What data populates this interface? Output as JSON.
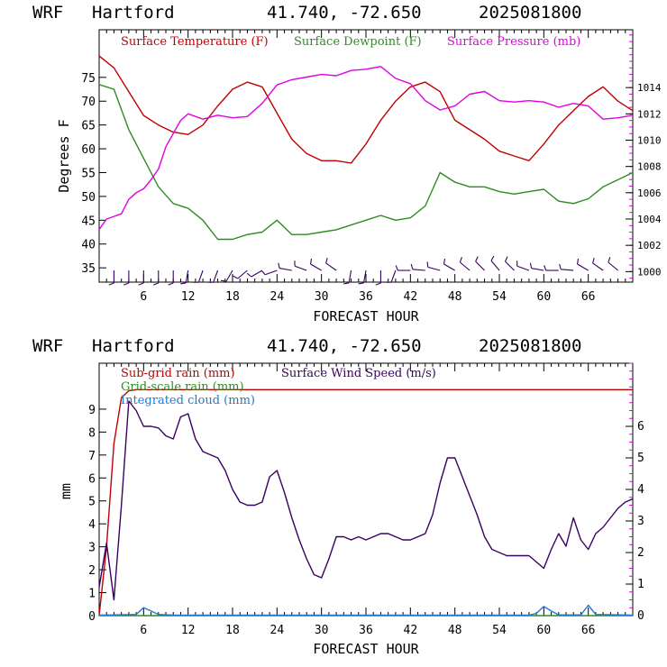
{
  "panels": [
    {
      "header": {
        "model": "WRF",
        "location": "Hartford",
        "coords": "41.740, -72.650",
        "run": "2025081800"
      },
      "xlabel": "FORECAST HOUR",
      "ylabel": "Degrees F",
      "legend": [
        {
          "label": "Surface Temperature (F)",
          "color": "#c00000"
        },
        {
          "label": "Surface Dewpoint (F)",
          "color": "#2e8b22"
        },
        {
          "label": "Surface Pressure (mb)",
          "color": "#e000e0"
        }
      ]
    },
    {
      "header": {
        "model": "WRF",
        "location": "Hartford",
        "coords": "41.740, -72.650",
        "run": "2025081800"
      },
      "xlabel": "FORECAST HOUR",
      "ylabel": "mm",
      "legend": [
        {
          "label": "Sub-grid rain (mm)",
          "color": "#c00000"
        },
        {
          "label": "Surface Wind Speed (m/s)",
          "color": "#3a0060"
        },
        {
          "label": "Grid-scale rain (mm)",
          "color": "#2e8b22"
        },
        {
          "label": "Integrated cloud (mm)",
          "color": "#1e7ad0"
        }
      ]
    }
  ],
  "chart_data": [
    {
      "type": "line",
      "xlim": [
        0,
        72
      ],
      "x_ticks": [
        6,
        12,
        18,
        24,
        30,
        36,
        42,
        48,
        54,
        60,
        66
      ],
      "ylim": [
        32,
        85
      ],
      "y_ticks": [
        35,
        40,
        45,
        50,
        55,
        60,
        65,
        70,
        75
      ],
      "y2lim": [
        999.2,
        1018.4
      ],
      "y2_ticks": [
        1000,
        1002,
        1004,
        1006,
        1008,
        1010,
        1012,
        1014
      ],
      "series": [
        {
          "name": "Surface Temperature (F)",
          "axis": "left",
          "color": "#c00000",
          "x": [
            0,
            2,
            4,
            6,
            8,
            10,
            12,
            14,
            16,
            18,
            20,
            22,
            24,
            26,
            28,
            30,
            32,
            34,
            36,
            38,
            40,
            42,
            44,
            46,
            48,
            50,
            52,
            54,
            56,
            58,
            60,
            62,
            64,
            66,
            68,
            70,
            72
          ],
          "y": [
            79.5,
            77,
            72,
            67,
            65,
            63.5,
            63,
            65,
            69,
            72.5,
            74,
            73,
            67.5,
            62,
            59,
            57.5,
            57.5,
            57,
            61,
            66,
            70,
            73,
            74,
            72,
            66,
            64,
            62,
            59.5,
            58.5,
            57.5,
            61,
            65,
            68,
            71,
            73,
            70,
            68
          ]
        },
        {
          "name": "Surface Dewpoint (F)",
          "axis": "left",
          "color": "#2e8b22",
          "x": [
            0,
            2,
            4,
            6,
            8,
            10,
            12,
            14,
            16,
            18,
            20,
            22,
            24,
            26,
            28,
            30,
            32,
            34,
            36,
            38,
            40,
            42,
            44,
            46,
            48,
            50,
            52,
            54,
            56,
            58,
            60,
            62,
            64,
            66,
            68,
            70,
            72
          ],
          "y": [
            73.5,
            72.5,
            64,
            58,
            52,
            48.5,
            47.5,
            45,
            41,
            41,
            42,
            42.5,
            45,
            42,
            42,
            42.5,
            43,
            44,
            45,
            46,
            45,
            45.5,
            48,
            55,
            53,
            52,
            52,
            51,
            50.5,
            51,
            51.5,
            49,
            48.5,
            49.5,
            52,
            53.5,
            55
          ]
        },
        {
          "name": "Surface Pressure (mb)",
          "axis": "right",
          "color": "#e000e0",
          "x": [
            0,
            1,
            3,
            4,
            5,
            6,
            7,
            8,
            9,
            10,
            11,
            12,
            14,
            16,
            18,
            20,
            22,
            24,
            26,
            28,
            30,
            32,
            34,
            36,
            38,
            40,
            42,
            44,
            46,
            48,
            50,
            52,
            54,
            56,
            58,
            60,
            62,
            64,
            66,
            68,
            70,
            72
          ],
          "y": [
            1003.2,
            1004,
            1004.4,
            1005.5,
            1006,
            1006.3,
            1007,
            1007.8,
            1009.5,
            1010.5,
            1011.5,
            1012,
            1011.6,
            1011.9,
            1011.7,
            1011.8,
            1012.8,
            1014.2,
            1014.6,
            1014.8,
            1015,
            1014.9,
            1015.3,
            1015.4,
            1015.6,
            1014.7,
            1014.3,
            1013,
            1012.3,
            1012.6,
            1013.5,
            1013.7,
            1013.0,
            1012.9,
            1013.0,
            1012.9,
            1012.5,
            1012.8,
            1012.6,
            1011.6,
            1011.7,
            1011.9
          ]
        },
        {
          "name": "wind barbs",
          "axis": "left",
          "color": "#3a0060",
          "x": [
            2,
            4,
            6,
            8,
            10,
            12,
            14,
            16,
            18,
            20,
            22,
            24,
            26,
            28,
            30,
            32,
            34,
            36,
            38,
            40,
            42,
            44,
            46,
            48,
            50,
            52,
            54,
            56,
            58,
            60,
            62,
            64,
            66,
            68,
            70
          ],
          "dir": [
            180,
            180,
            180,
            180,
            180,
            190,
            200,
            200,
            210,
            230,
            240,
            250,
            280,
            290,
            300,
            305,
            190,
            190,
            180,
            200,
            270,
            275,
            285,
            300,
            310,
            315,
            320,
            315,
            290,
            280,
            270,
            275,
            300,
            305,
            310
          ]
        }
      ]
    },
    {
      "type": "line",
      "xlim": [
        0,
        72
      ],
      "x_ticks": [
        6,
        12,
        18,
        24,
        30,
        36,
        42,
        48,
        54,
        60,
        66
      ],
      "ylim": [
        0,
        11
      ],
      "y_ticks": [
        0,
        1,
        2,
        3,
        4,
        5,
        6,
        7,
        8,
        9
      ],
      "y2lim": [
        0,
        8
      ],
      "y2_ticks": [
        0,
        1,
        2,
        3,
        4,
        5,
        6
      ],
      "series": [
        {
          "name": "Sub-grid rain (mm)",
          "axis": "left",
          "color": "#c00000",
          "x": [
            0,
            1,
            2,
            3,
            4,
            5,
            72
          ],
          "y": [
            0,
            3.0,
            7.5,
            9.5,
            9.8,
            9.85,
            9.85
          ]
        },
        {
          "name": "Grid-scale rain (mm)",
          "axis": "left",
          "color": "#2e8b22",
          "x": [
            0,
            72
          ],
          "y": [
            0,
            0
          ]
        },
        {
          "name": "Integrated cloud (mm)",
          "axis": "left",
          "color": "#1e7ad0",
          "x": [
            0,
            5,
            6,
            7,
            8,
            10,
            58,
            59,
            60,
            61,
            62,
            65,
            66,
            67,
            72
          ],
          "y": [
            0.02,
            0.05,
            0.35,
            0.2,
            0.05,
            0.02,
            0.02,
            0.1,
            0.4,
            0.2,
            0.03,
            0.03,
            0.45,
            0.05,
            0.02
          ]
        },
        {
          "name": "Surface Wind Speed (m/s)",
          "axis": "right",
          "color": "#3a0060",
          "x": [
            0,
            1,
            2,
            3,
            4,
            5,
            6,
            7,
            8,
            9,
            10,
            11,
            12,
            13,
            14,
            15,
            16,
            17,
            18,
            19,
            20,
            21,
            22,
            23,
            24,
            25,
            26,
            27,
            28,
            29,
            30,
            31,
            32,
            33,
            34,
            35,
            36,
            37,
            38,
            39,
            40,
            41,
            42,
            43,
            44,
            45,
            46,
            47,
            48,
            49,
            50,
            51,
            52,
            53,
            54,
            55,
            56,
            57,
            58,
            59,
            60,
            61,
            62,
            63,
            64,
            65,
            66,
            67,
            68,
            69,
            70,
            71,
            72
          ],
          "y": [
            0.9,
            2.3,
            0.5,
            3.5,
            6.8,
            6.5,
            6.0,
            6.0,
            5.95,
            5.7,
            5.6,
            6.3,
            6.4,
            5.6,
            5.2,
            5.1,
            5.0,
            4.6,
            4.0,
            3.6,
            3.5,
            3.5,
            3.6,
            4.4,
            4.6,
            3.9,
            3.1,
            2.4,
            1.8,
            1.3,
            1.2,
            1.8,
            2.5,
            2.5,
            2.4,
            2.5,
            2.4,
            2.5,
            2.6,
            2.6,
            2.5,
            2.4,
            2.4,
            2.5,
            2.6,
            3.2,
            4.2,
            5.0,
            5.0,
            4.4,
            3.8,
            3.2,
            2.5,
            2.1,
            2.0,
            1.9,
            1.9,
            1.9,
            1.9,
            1.7,
            1.5,
            2.1,
            2.6,
            2.2,
            3.1,
            2.4,
            2.1,
            2.6,
            2.8,
            3.1,
            3.4,
            3.6,
            3.7
          ]
        }
      ]
    }
  ]
}
